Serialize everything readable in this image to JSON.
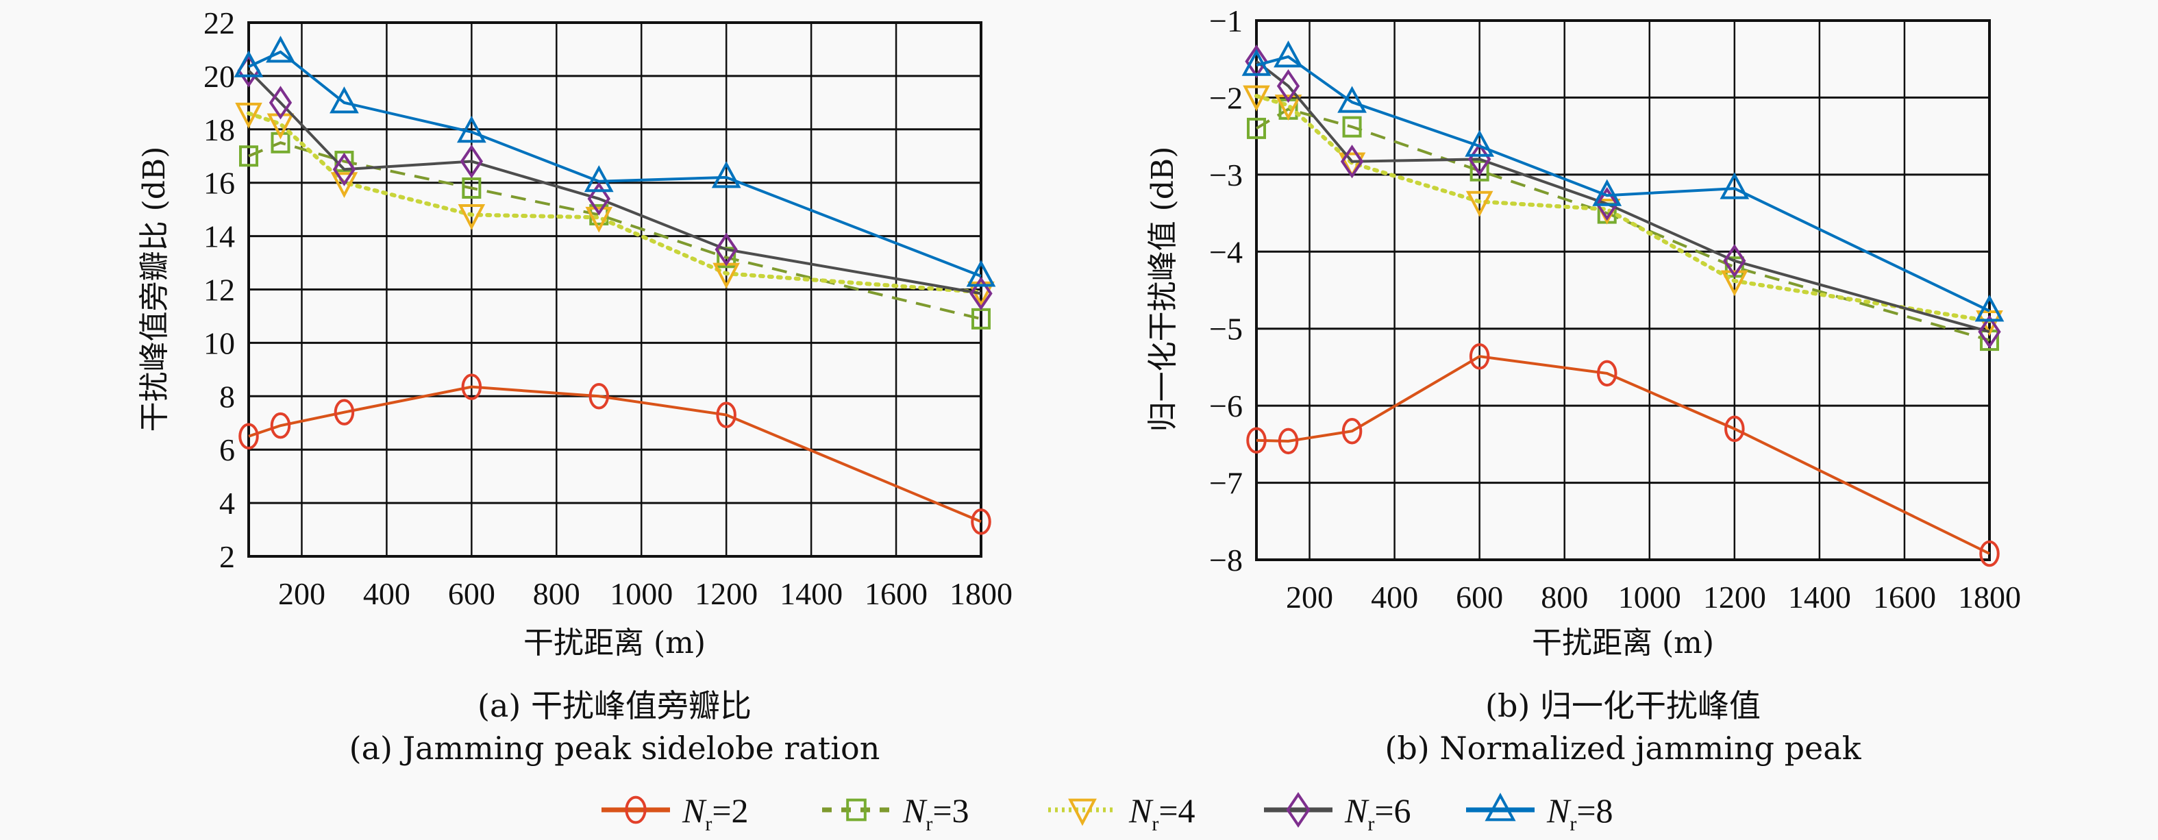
{
  "chart_data": [
    {
      "id": "a",
      "type": "line",
      "title": "",
      "caption_cn": "(a) 干扰峰值旁瓣比",
      "caption_en": "(a) Jamming peak sidelobe ration",
      "xlabel": "干扰距离 (m)",
      "ylabel": "干扰峰值旁瓣比 (dB)",
      "xlim": [
        75,
        1800
      ],
      "ylim": [
        2,
        22
      ],
      "xticks": [
        200,
        400,
        600,
        800,
        1000,
        1200,
        1400,
        1600,
        1800
      ],
      "yticks": [
        2,
        4,
        6,
        8,
        10,
        12,
        14,
        16,
        18,
        20,
        22
      ],
      "grid": true,
      "x": [
        75,
        150,
        300,
        600,
        900,
        1200,
        1800
      ],
      "series": [
        {
          "name": "Nr=2",
          "values": [
            6.5,
            6.9,
            7.4,
            8.35,
            8.0,
            7.3,
            3.3
          ]
        },
        {
          "name": "Nr=3",
          "values": [
            17.0,
            17.5,
            16.8,
            15.8,
            14.8,
            13.2,
            10.9
          ]
        },
        {
          "name": "Nr=4",
          "values": [
            18.6,
            18.2,
            16.0,
            14.8,
            14.7,
            12.6,
            11.9
          ]
        },
        {
          "name": "Nr=6",
          "values": [
            20.2,
            19.0,
            16.5,
            16.8,
            15.4,
            13.5,
            11.85
          ]
        },
        {
          "name": "Nr=8",
          "values": [
            20.35,
            20.9,
            19.0,
            17.9,
            16.05,
            16.2,
            12.5
          ]
        }
      ]
    },
    {
      "id": "b",
      "type": "line",
      "title": "",
      "caption_cn": "(b) 归一化干扰峰值",
      "caption_en": "(b) Normalized jamming peak",
      "xlabel": "干扰距离 (m)",
      "ylabel": "归一化干扰峰值 (dB)",
      "xlim": [
        75,
        1800
      ],
      "ylim": [
        -8,
        -1
      ],
      "xticks": [
        200,
        400,
        600,
        800,
        1000,
        1200,
        1400,
        1600,
        1800
      ],
      "yticks": [
        -8,
        -7,
        -6,
        -5,
        -4,
        -3,
        -2,
        -1
      ],
      "grid": true,
      "x": [
        75,
        150,
        300,
        600,
        900,
        1200,
        1800
      ],
      "series": [
        {
          "name": "Nr=2",
          "values": [
            -6.45,
            -6.46,
            -6.33,
            -5.36,
            -5.58,
            -6.3,
            -7.92
          ]
        },
        {
          "name": "Nr=3",
          "values": [
            -2.4,
            -2.15,
            -2.38,
            -2.95,
            -3.5,
            -4.2,
            -5.15
          ]
        },
        {
          "name": "Nr=4",
          "values": [
            -1.98,
            -2.1,
            -2.85,
            -3.35,
            -3.45,
            -4.38,
            -4.9
          ]
        },
        {
          "name": "Nr=6",
          "values": [
            -1.53,
            -1.85,
            -2.83,
            -2.8,
            -3.38,
            -4.12,
            -5.04
          ]
        },
        {
          "name": "Nr=8",
          "values": [
            -1.58,
            -1.47,
            -2.06,
            -2.63,
            -3.27,
            -3.18,
            -4.77
          ]
        }
      ]
    }
  ],
  "legend": {
    "placement": "bottom-center",
    "items": [
      {
        "label_main": "N",
        "label_sub": "r",
        "label_rest": "=2",
        "marker": "circle",
        "line": "solid",
        "line_color": "#D95319",
        "marker_color": "#E2402A"
      },
      {
        "label_main": "N",
        "label_sub": "r",
        "label_rest": "=3",
        "marker": "square",
        "line": "dashed",
        "line_color": "#7E9A2E",
        "marker_color": "#77AC30"
      },
      {
        "label_main": "N",
        "label_sub": "r",
        "label_rest": "=4",
        "marker": "triangle-down",
        "line": "dotted",
        "line_color": "#C8D43A",
        "marker_color": "#EDB120"
      },
      {
        "label_main": "N",
        "label_sub": "r",
        "label_rest": "=6",
        "marker": "diamond",
        "line": "solid",
        "line_color": "#4D4D4D",
        "marker_color": "#7E2F8E"
      },
      {
        "label_main": "N",
        "label_sub": "r",
        "label_rest": "=8",
        "marker": "triangle-up",
        "line": "solid",
        "line_color": "#0072BD",
        "marker_color": "#0072BD"
      }
    ]
  }
}
